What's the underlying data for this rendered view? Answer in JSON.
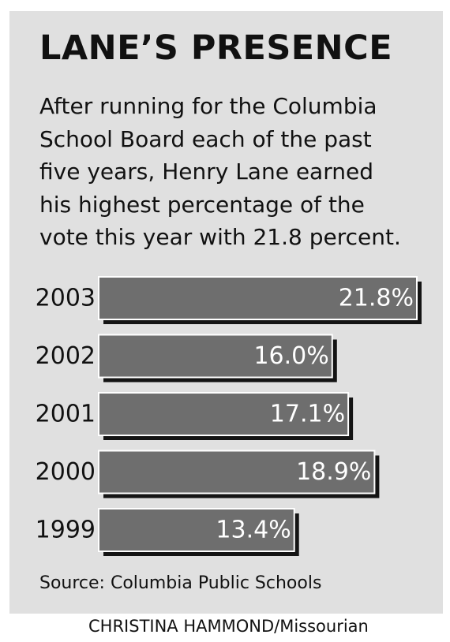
{
  "title": "LANE’S PRESENCE",
  "description_lines": [
    "After running for the Columbia",
    "School Board each of the past",
    "five years, Henry Lane earned",
    "his highest percentage of the",
    "vote this year with 21.8 percent."
  ],
  "source": "Source: Columbia Public Schools",
  "credit": "CHRISTINA HAMMOND/Missourian",
  "colors": {
    "background": "#e0e0e0",
    "bar_fill": "#6e6e6e",
    "bar_shadow": "#141414",
    "bar_border": "#ffffff",
    "label_text": "#ffffff"
  },
  "chart_data": {
    "type": "bar",
    "orientation": "horizontal",
    "categories": [
      "2003",
      "2002",
      "2001",
      "2000",
      "1999"
    ],
    "values": [
      21.8,
      16.0,
      17.1,
      18.9,
      13.4
    ],
    "value_labels": [
      "21.8%",
      "16.0%",
      "17.1%",
      "18.9%",
      "13.4%"
    ],
    "unit": "percent",
    "xlim": [
      0,
      21.8
    ],
    "grid": false,
    "legend": "none"
  }
}
